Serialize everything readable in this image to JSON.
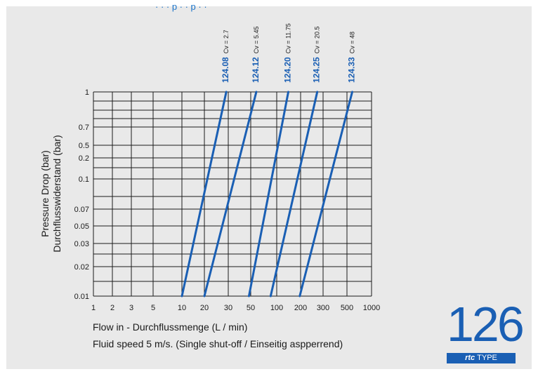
{
  "header": {
    "fragment": "· · · p · · p · ·"
  },
  "chart_data": {
    "type": "line",
    "title": "",
    "xlabel": "Flow in - Durchflussmenge (L / min)",
    "subtitle": "Fluid speed 5 m/s. (Single shut-off / Einseitig aspperrend)",
    "ylabel_lines": [
      "Pressure Drop (bar)",
      "Durchflusswiderstand (bar)"
    ],
    "x_ticks": [
      "1",
      "2",
      "3",
      "5",
      "10",
      "20",
      "30",
      "50",
      "100",
      "200",
      "300",
      "500",
      "1000"
    ],
    "y_ticks": [
      "1",
      "0.7",
      "0.5",
      "0.2",
      "0.1",
      "0.07",
      "0.05",
      "0.03",
      "0.02",
      "0.01"
    ],
    "grid": true,
    "line_color": "#1a5fb4",
    "series": [
      {
        "name": "124.08",
        "cv": "Cv = 2.7",
        "points": [
          [
            10,
            0.01
          ],
          [
            29,
            1
          ]
        ]
      },
      {
        "name": "124.12",
        "cv": "Cv = 5.45",
        "points": [
          [
            20,
            0.01
          ],
          [
            58,
            1
          ]
        ]
      },
      {
        "name": "124.20",
        "cv": "Cv = 11.75",
        "points": [
          [
            48,
            0.01
          ],
          [
            140,
            1
          ]
        ]
      },
      {
        "name": "124.25",
        "cv": "Cv = 20.5",
        "points": [
          [
            85,
            0.01
          ],
          [
            270,
            1
          ]
        ]
      },
      {
        "name": "124.33",
        "cv": "Cv = 48",
        "points": [
          [
            195,
            0.01
          ],
          [
            580,
            1
          ]
        ]
      }
    ]
  },
  "badge": {
    "number": "126",
    "brand": "rtc",
    "type": "TYPE",
    "color": "#1a5fb4"
  }
}
